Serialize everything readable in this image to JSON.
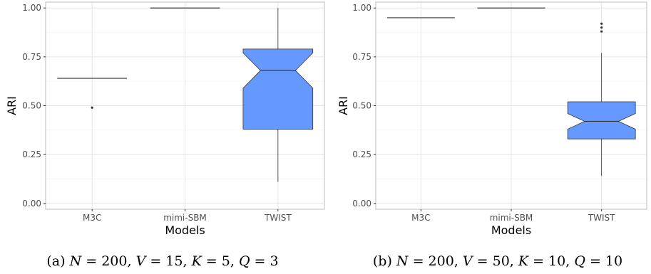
{
  "chart_data": [
    {
      "type": "box",
      "panel": "a",
      "caption_label": "(a)",
      "caption_parts": [
        {
          "t": "N",
          "it": true
        },
        {
          "t": " = 200, ",
          "it": false
        },
        {
          "t": "V",
          "it": true
        },
        {
          "t": " = 15, ",
          "it": false
        },
        {
          "t": "K",
          "it": true
        },
        {
          "t": " = 5, ",
          "it": false
        },
        {
          "t": "Q",
          "it": true
        },
        {
          "t": " = 3",
          "it": false
        }
      ],
      "xlabel": "Models",
      "ylabel": "ARI",
      "ylim": [
        -0.03,
        1.03
      ],
      "yticks": [
        "0.00",
        "0.25",
        "0.50",
        "0.75",
        "1.00"
      ],
      "yticks_values": [
        0,
        0.25,
        0.5,
        0.75,
        1.0
      ],
      "grid": true,
      "notched": true,
      "categories": [
        "M3C",
        "mimi-SBM",
        "TWIST"
      ],
      "boxes": [
        {
          "name": "M3C",
          "q1": 0.64,
          "median": 0.64,
          "q3": 0.64,
          "lower_whisker": 0.64,
          "upper_whisker": 0.64,
          "notch_low": 0.64,
          "notch_high": 0.64,
          "outliers": [
            0.49
          ]
        },
        {
          "name": "mimi-SBM",
          "q1": 1.0,
          "median": 1.0,
          "q3": 1.0,
          "lower_whisker": 1.0,
          "upper_whisker": 1.0,
          "notch_low": 1.0,
          "notch_high": 1.0,
          "outliers": []
        },
        {
          "name": "TWIST",
          "q1": 0.38,
          "median": 0.68,
          "q3": 0.79,
          "lower_whisker": 0.11,
          "upper_whisker": 1.0,
          "notch_low": 0.59,
          "notch_high": 0.77,
          "outliers": []
        }
      ],
      "fill_color": "#6699ff"
    },
    {
      "type": "box",
      "panel": "b",
      "caption_label": "(b)",
      "caption_parts": [
        {
          "t": "N",
          "it": true
        },
        {
          "t": " = 200, ",
          "it": false
        },
        {
          "t": "V",
          "it": true
        },
        {
          "t": " = 50, ",
          "it": false
        },
        {
          "t": "K",
          "it": true
        },
        {
          "t": " = 10, ",
          "it": false
        },
        {
          "t": "Q",
          "it": true
        },
        {
          "t": " = 10",
          "it": false
        }
      ],
      "xlabel": "Models",
      "ylabel": "ARI",
      "ylim": [
        -0.03,
        1.03
      ],
      "yticks": [
        "0.00",
        "0.25",
        "0.50",
        "0.75",
        "1.00"
      ],
      "yticks_values": [
        0,
        0.25,
        0.5,
        0.75,
        1.0
      ],
      "grid": true,
      "notched": true,
      "categories": [
        "M3C",
        "mimi-SBM",
        "TWIST"
      ],
      "boxes": [
        {
          "name": "M3C",
          "q1": 0.95,
          "median": 0.95,
          "q3": 0.95,
          "lower_whisker": 0.95,
          "upper_whisker": 0.95,
          "notch_low": 0.95,
          "notch_high": 0.95,
          "outliers": []
        },
        {
          "name": "mimi-SBM",
          "q1": 1.0,
          "median": 1.0,
          "q3": 1.0,
          "lower_whisker": 1.0,
          "upper_whisker": 1.0,
          "notch_low": 1.0,
          "notch_high": 1.0,
          "outliers": []
        },
        {
          "name": "TWIST",
          "q1": 0.33,
          "median": 0.42,
          "q3": 0.52,
          "lower_whisker": 0.14,
          "upper_whisker": 0.77,
          "notch_low": 0.38,
          "notch_high": 0.46,
          "outliers": [
            0.88,
            0.9,
            0.92
          ]
        }
      ],
      "fill_color": "#6699ff"
    }
  ]
}
